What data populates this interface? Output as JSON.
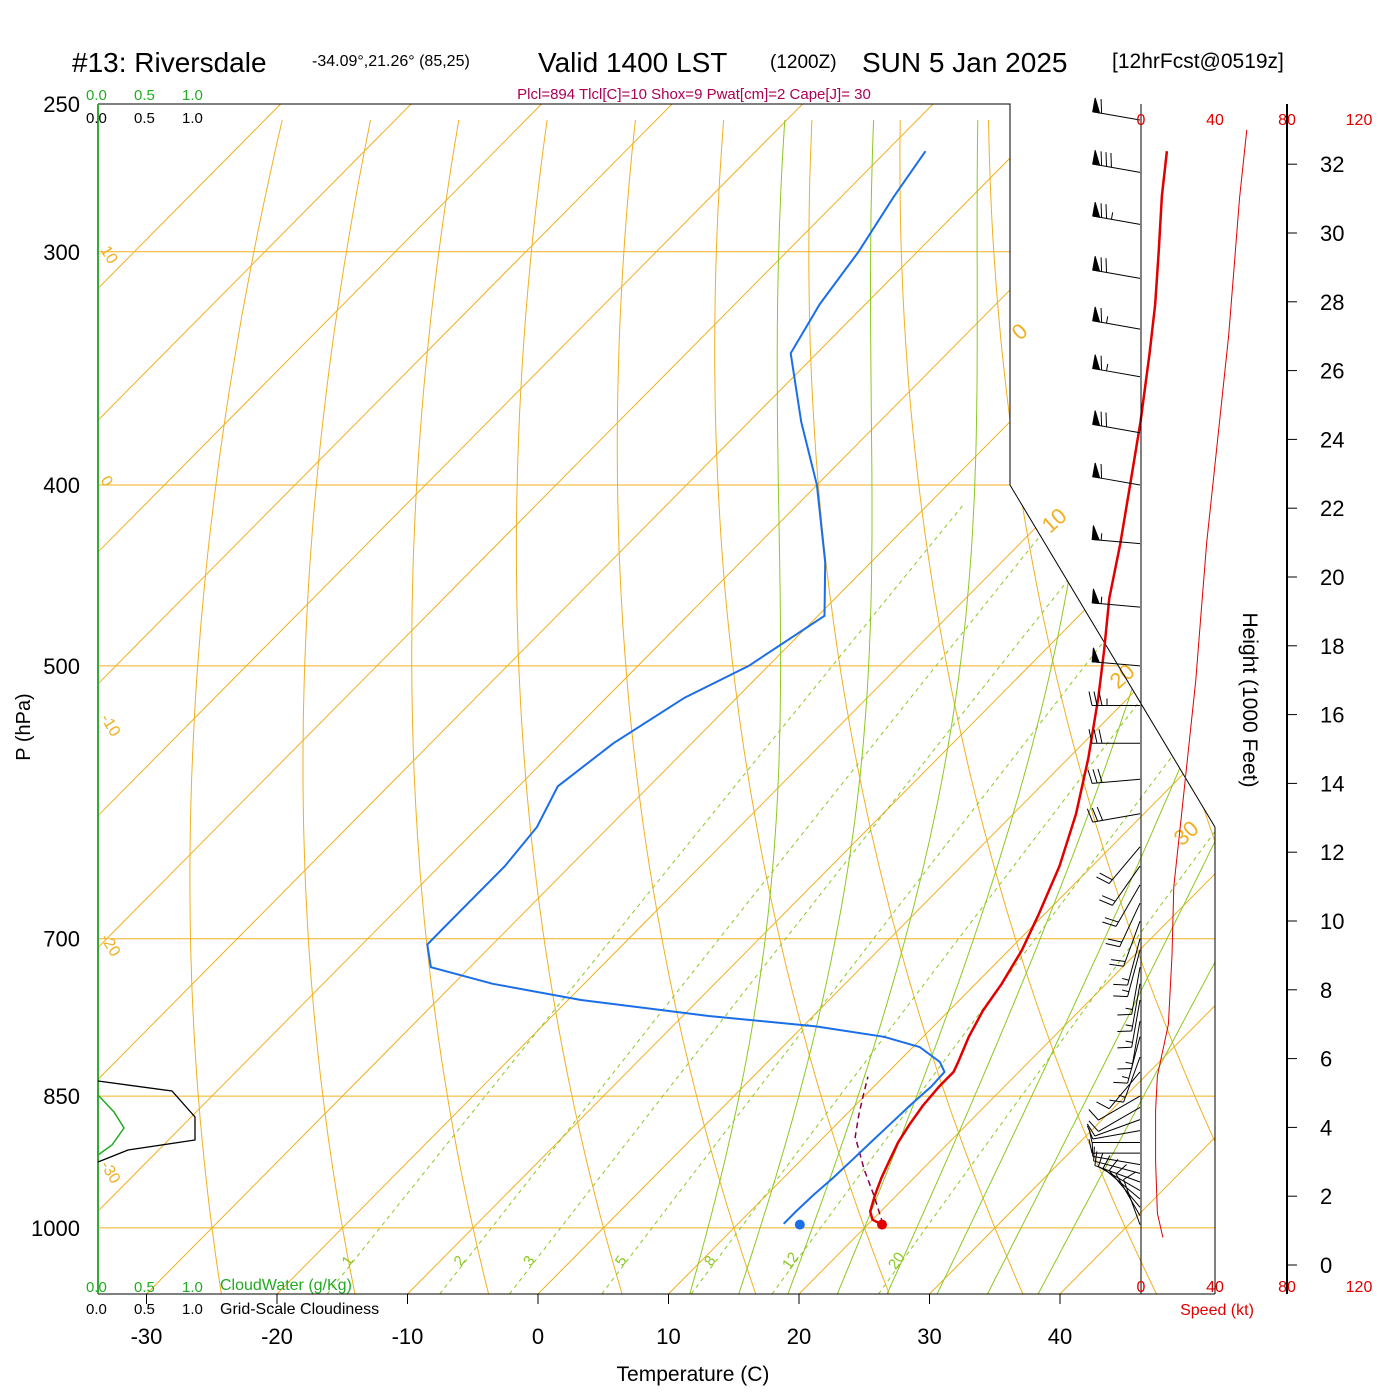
{
  "header": {
    "station": "#13: Riversdale",
    "coords": "-34.09°,21.26° (85,25)",
    "valid": "Valid 1400 LST",
    "zulu": "(1200Z)",
    "date": "SUN 5 Jan 2025",
    "forecast": "[12hrFcst@0519z]",
    "params": "Plcl=894 Tlcl[C]=10 Shox=9 Pwat[cm]=2 Cape[J]= 30"
  },
  "legend": {
    "top_green": [
      "0.0",
      "0.5",
      "1.0"
    ],
    "top_black": [
      "0.0",
      "0.5",
      "1.0"
    ],
    "bottom_green": [
      "0.0",
      "0.5",
      "1.0"
    ],
    "bottom_black": [
      "0.0",
      "0.5",
      "1.0"
    ],
    "cloudwater_label": "CloudWater (g/Kg)",
    "cloudiness_label": "Grid-Scale Cloudiness"
  },
  "colors": {
    "temperature": "#e00000",
    "dewpoint": "#1a6ee8",
    "isotherm": "#f0b020",
    "dry_adiabat": "#f0b020",
    "moist_adiabat": "#8cc820",
    "mixing_ratio": "#8cc820",
    "cloudwater": "#22aa22",
    "params_text": "#aa0055",
    "speed": "#e00000"
  },
  "chart_data": {
    "type": "skew-t",
    "xlabel": "Temperature (C)",
    "ylabel": "P (hPa)",
    "right_ylabel": "Height (1000 Feet)",
    "xticks": [
      -30,
      -20,
      -10,
      0,
      10,
      20,
      30,
      40
    ],
    "pressure_ticks": [
      250,
      300,
      400,
      500,
      700,
      850,
      1000
    ],
    "plim": [
      250,
      1085
    ],
    "temperature_profile": [
      {
        "p": 996,
        "t": 21.1
      },
      {
        "p": 990,
        "t": 20.0
      },
      {
        "p": 980,
        "t": 19.2
      },
      {
        "p": 960,
        "t": 18.3
      },
      {
        "p": 940,
        "t": 17.5
      },
      {
        "p": 920,
        "t": 16.8
      },
      {
        "p": 900,
        "t": 16.1
      },
      {
        "p": 880,
        "t": 15.6
      },
      {
        "p": 860,
        "t": 15.2
      },
      {
        "p": 840,
        "t": 15.0
      },
      {
        "p": 825,
        "t": 15.0
      },
      {
        "p": 815,
        "t": 14.6
      },
      {
        "p": 790,
        "t": 13.5
      },
      {
        "p": 765,
        "t": 12.6
      },
      {
        "p": 740,
        "t": 12.0
      },
      {
        "p": 710,
        "t": 11.0
      },
      {
        "p": 680,
        "t": 9.6
      },
      {
        "p": 640,
        "t": 7.5
      },
      {
        "p": 600,
        "t": 4.8
      },
      {
        "p": 560,
        "t": 1.5
      },
      {
        "p": 520,
        "t": -2.3
      },
      {
        "p": 490,
        "t": -5.5
      },
      {
        "p": 460,
        "t": -9.0
      },
      {
        "p": 430,
        "t": -12.3
      },
      {
        "p": 400,
        "t": -16.0
      },
      {
        "p": 370,
        "t": -20.0
      },
      {
        "p": 340,
        "t": -24.5
      },
      {
        "p": 320,
        "t": -27.8
      },
      {
        "p": 300,
        "t": -31.5
      },
      {
        "p": 280,
        "t": -35.5
      },
      {
        "p": 265,
        "t": -38.5
      }
    ],
    "dewpoint_profile": [
      {
        "p": 995,
        "t": 13.5
      },
      {
        "p": 980,
        "t": 13.5
      },
      {
        "p": 960,
        "t": 13.6
      },
      {
        "p": 940,
        "t": 13.8
      },
      {
        "p": 920,
        "t": 13.9
      },
      {
        "p": 900,
        "t": 14.0
      },
      {
        "p": 880,
        "t": 14.1
      },
      {
        "p": 860,
        "t": 14.2
      },
      {
        "p": 840,
        "t": 14.4
      },
      {
        "p": 825,
        "t": 14.3
      },
      {
        "p": 815,
        "t": 13.2
      },
      {
        "p": 800,
        "t": 10.5
      },
      {
        "p": 790,
        "t": 7.0
      },
      {
        "p": 780,
        "t": 1.0
      },
      {
        "p": 770,
        "t": -8.0
      },
      {
        "p": 755,
        "t": -19.0
      },
      {
        "p": 740,
        "t": -27.0
      },
      {
        "p": 725,
        "t": -33.0
      },
      {
        "p": 705,
        "t": -35.0
      },
      {
        "p": 690,
        "t": -35.0
      },
      {
        "p": 670,
        "t": -35.0
      },
      {
        "p": 640,
        "t": -35.0
      },
      {
        "p": 610,
        "t": -35.5
      },
      {
        "p": 580,
        "t": -37.0
      },
      {
        "p": 550,
        "t": -36.0
      },
      {
        "p": 520,
        "t": -34.0
      },
      {
        "p": 500,
        "t": -31.5
      },
      {
        "p": 470,
        "t": -29.5
      },
      {
        "p": 440,
        "t": -33.5
      },
      {
        "p": 400,
        "t": -40.0
      },
      {
        "p": 370,
        "t": -46.0
      },
      {
        "p": 340,
        "t": -52.0
      },
      {
        "p": 320,
        "t": -53.5
      },
      {
        "p": 300,
        "t": -54.5
      },
      {
        "p": 280,
        "t": -56.0
      },
      {
        "p": 265,
        "t": -57.0
      }
    ],
    "parcel_path": [
      {
        "p": 995,
        "t": 21.1
      },
      {
        "p": 960,
        "t": 18.2
      },
      {
        "p": 930,
        "t": 15.5
      },
      {
        "p": 910,
        "t": 13.8
      },
      {
        "p": 894,
        "t": 12.4
      },
      {
        "p": 870,
        "t": 11.0
      },
      {
        "p": 850,
        "t": 9.9
      },
      {
        "p": 830,
        "t": 8.8
      }
    ],
    "surface": {
      "p": 996,
      "t": 21.1,
      "td": 14.8
    },
    "isotherm_labels": [
      -20,
      -10,
      0,
      10,
      20,
      30
    ],
    "dry_adiabat_labels": [
      10,
      0,
      -10,
      -20,
      -30,
      -40
    ],
    "mixing_ratio_labels": [
      "1",
      "2",
      "3",
      "5",
      "8",
      "12",
      "20"
    ],
    "mixing_ratio_values": [
      1,
      2,
      3,
      5,
      8,
      12,
      20
    ],
    "moist_adiabat_temps": [
      8,
      12,
      16,
      20,
      24,
      28,
      32,
      36
    ],
    "dry_adiabat_temps": [
      -30,
      -20,
      -10,
      0,
      10,
      20,
      30,
      40,
      50,
      60,
      70,
      80,
      90
    ],
    "isotherm_temps": [
      -110,
      -100,
      -90,
      -80,
      -70,
      -60,
      -50,
      -40,
      -30,
      -20,
      -10,
      0,
      10,
      20,
      30,
      40
    ],
    "height_ticks": [
      "0",
      "2",
      "4",
      "6",
      "8",
      "10",
      "12",
      "14",
      "16",
      "18",
      "20",
      "22",
      "24",
      "26",
      "28",
      "30",
      "32"
    ],
    "speed_ticks_top": [
      "0",
      "40",
      "80",
      "120"
    ],
    "speed_ticks_bottom": [
      "0",
      "40",
      "80",
      "120"
    ],
    "speed_label": "Speed (kt)",
    "wind_speed_profile": [
      {
        "h": 0.8,
        "s": 12
      },
      {
        "h": 1.5,
        "s": 9
      },
      {
        "h": 3,
        "s": 8
      },
      {
        "h": 4.5,
        "s": 8
      },
      {
        "h": 5.5,
        "s": 9
      },
      {
        "h": 7,
        "s": 15
      },
      {
        "h": 9,
        "s": 17
      },
      {
        "h": 11,
        "s": 18
      },
      {
        "h": 13,
        "s": 22
      },
      {
        "h": 15,
        "s": 26
      },
      {
        "h": 17,
        "s": 30
      },
      {
        "h": 19,
        "s": 33
      },
      {
        "h": 21,
        "s": 36
      },
      {
        "h": 23,
        "s": 40
      },
      {
        "h": 25,
        "s": 44
      },
      {
        "h": 27,
        "s": 48
      },
      {
        "h": 29,
        "s": 51
      },
      {
        "h": 31,
        "s": 54
      },
      {
        "h": 33,
        "s": 58
      }
    ],
    "wind_barbs": [
      {
        "p": 996,
        "dir": 340,
        "spd": 10
      },
      {
        "p": 985,
        "dir": 330,
        "spd": 10
      },
      {
        "p": 975,
        "dir": 320,
        "spd": 10
      },
      {
        "p": 965,
        "dir": 310,
        "spd": 10
      },
      {
        "p": 955,
        "dir": 300,
        "spd": 10
      },
      {
        "p": 945,
        "dir": 290,
        "spd": 10
      },
      {
        "p": 935,
        "dir": 285,
        "spd": 10
      },
      {
        "p": 925,
        "dir": 280,
        "spd": 10
      },
      {
        "p": 912,
        "dir": 270,
        "spd": 10
      },
      {
        "p": 900,
        "dir": 270,
        "spd": 10
      },
      {
        "p": 887,
        "dir": 260,
        "spd": 10
      },
      {
        "p": 875,
        "dir": 250,
        "spd": 10
      },
      {
        "p": 862,
        "dir": 240,
        "spd": 10
      },
      {
        "p": 850,
        "dir": 240,
        "spd": 10
      },
      {
        "p": 825,
        "dir": 220,
        "spd": 10
      },
      {
        "p": 810,
        "dir": 200,
        "spd": 15
      },
      {
        "p": 790,
        "dir": 195,
        "spd": 15
      },
      {
        "p": 775,
        "dir": 190,
        "spd": 15
      },
      {
        "p": 755,
        "dir": 190,
        "spd": 15
      },
      {
        "p": 740,
        "dir": 190,
        "spd": 15
      },
      {
        "p": 725,
        "dir": 190,
        "spd": 15
      },
      {
        "p": 710,
        "dir": 195,
        "spd": 15
      },
      {
        "p": 700,
        "dir": 195,
        "spd": 15
      },
      {
        "p": 685,
        "dir": 200,
        "spd": 20
      },
      {
        "p": 670,
        "dir": 205,
        "spd": 20
      },
      {
        "p": 655,
        "dir": 210,
        "spd": 20
      },
      {
        "p": 640,
        "dir": 215,
        "spd": 20
      },
      {
        "p": 625,
        "dir": 220,
        "spd": 20
      },
      {
        "p": 600,
        "dir": 260,
        "spd": 30
      },
      {
        "p": 575,
        "dir": 265,
        "spd": 30
      },
      {
        "p": 550,
        "dir": 270,
        "spd": 30
      },
      {
        "p": 525,
        "dir": 270,
        "spd": 35
      },
      {
        "p": 500,
        "dir": 275,
        "spd": 50
      },
      {
        "p": 465,
        "dir": 275,
        "spd": 55
      },
      {
        "p": 430,
        "dir": 275,
        "spd": 55
      },
      {
        "p": 400,
        "dir": 280,
        "spd": 60
      },
      {
        "p": 375,
        "dir": 280,
        "spd": 70
      },
      {
        "p": 350,
        "dir": 280,
        "spd": 65
      },
      {
        "p": 330,
        "dir": 280,
        "spd": 65
      },
      {
        "p": 310,
        "dir": 280,
        "spd": 70
      },
      {
        "p": 290,
        "dir": 280,
        "spd": 75
      },
      {
        "p": 272,
        "dir": 280,
        "spd": 80
      },
      {
        "p": 255,
        "dir": 280,
        "spd": 60
      }
    ]
  }
}
